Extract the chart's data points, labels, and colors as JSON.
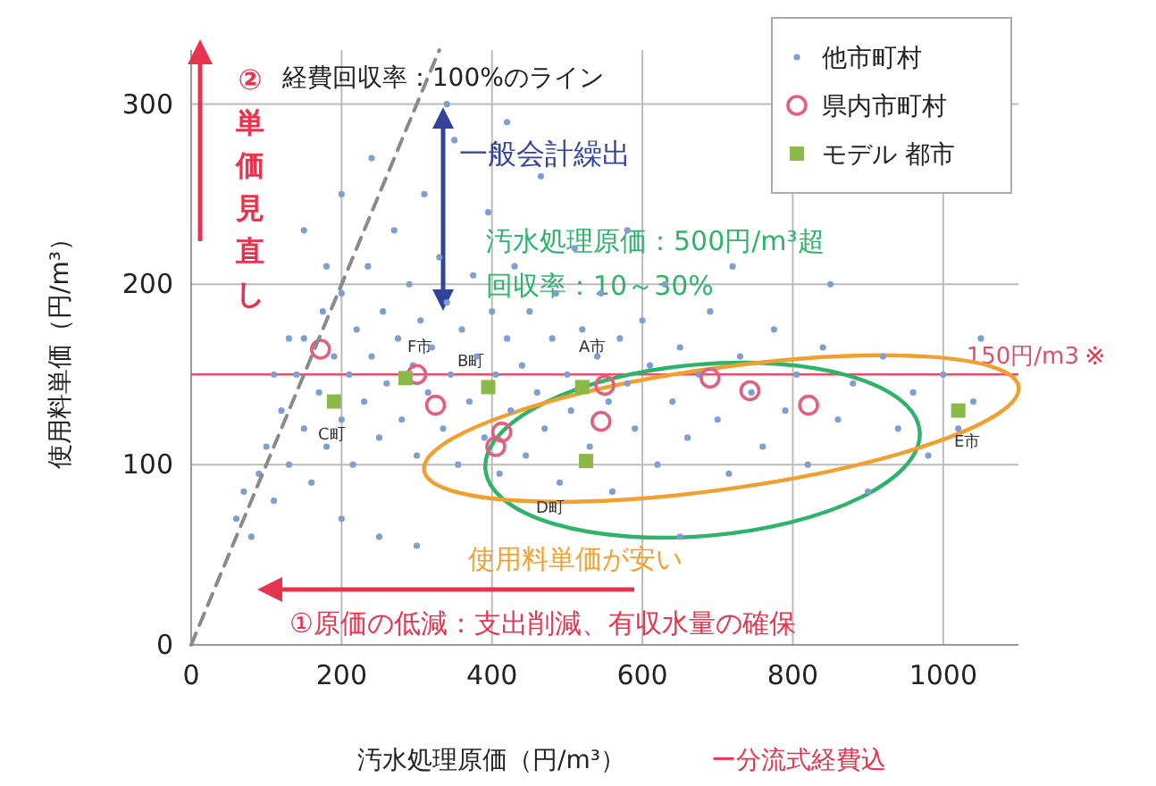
{
  "chart_data": {
    "type": "scatter",
    "xlabel": "汚水処理原価（円/m³）",
    "ylabel": "使用料単価（円/m³）",
    "xlim": [
      0,
      1100
    ],
    "ylim": [
      0,
      330
    ],
    "xticks": [
      0,
      200,
      400,
      600,
      800,
      1000
    ],
    "yticks": [
      0,
      100,
      200,
      300
    ],
    "grid": true,
    "legend": "top right",
    "series": [
      {
        "name": "他市町村",
        "color": "#7f9fd2",
        "marker": "circle",
        "x": [
          60,
          70,
          80,
          90,
          100,
          110,
          120,
          130,
          140,
          150,
          150,
          160,
          170,
          175,
          180,
          190,
          200,
          200,
          210,
          215,
          220,
          230,
          235,
          240,
          250,
          255,
          260,
          270,
          275,
          280,
          290,
          295,
          300,
          305,
          310,
          315,
          320,
          330,
          335,
          340,
          345,
          350,
          355,
          360,
          370,
          375,
          380,
          390,
          395,
          400,
          405,
          410,
          420,
          425,
          430,
          440,
          445,
          450,
          460,
          465,
          470,
          480,
          485,
          490,
          500,
          505,
          510,
          520,
          530,
          540,
          545,
          555,
          560,
          570,
          580,
          590,
          600,
          610,
          620,
          630,
          640,
          650,
          660,
          675,
          690,
          700,
          715,
          730,
          745,
          760,
          775,
          790,
          805,
          820,
          840,
          860,
          880,
          900,
          920,
          940,
          960,
          980,
          1000,
          1020,
          1040,
          250,
          200,
          300,
          650,
          340,
          200,
          150,
          420,
          580,
          720,
          850,
          1050,
          130,
          110,
          180,
          240
        ],
        "values": [
          70,
          85,
          60,
          95,
          110,
          80,
          130,
          100,
          150,
          120,
          170,
          90,
          140,
          185,
          110,
          160,
          125,
          195,
          150,
          100,
          175,
          135,
          210,
          160,
          115,
          185,
          145,
          230,
          170,
          125,
          200,
          155,
          105,
          180,
          250,
          140,
          165,
          215,
          120,
          190,
          150,
          280,
          100,
          175,
          135,
          205,
          160,
          115,
          240,
          185,
          150,
          95,
          170,
          130,
          210,
          155,
          105,
          185,
          140,
          260,
          120,
          170,
          195,
          90,
          150,
          130,
          220,
          175,
          110,
          160,
          195,
          135,
          85,
          170,
          145,
          120,
          180,
          155,
          100,
          200,
          135,
          165,
          115,
          150,
          185,
          125,
          95,
          160,
          140,
          110,
          175,
          130,
          150,
          100,
          165,
          125,
          145,
          85,
          160,
          120,
          140,
          105,
          150,
          120,
          135,
          60,
          70,
          55,
          60,
          300,
          250,
          230,
          290,
          230,
          210,
          200,
          170,
          170,
          150,
          210,
          270
        ]
      },
      {
        "name": "県内市町村",
        "color": "#e0607e",
        "marker": "circle",
        "x": [
          172,
          300,
          325,
          413,
          405,
          550,
          545,
          690,
          743,
          821
        ],
        "values": [
          164,
          150,
          133,
          118,
          110,
          144,
          124,
          148,
          141,
          133
        ]
      },
      {
        "name": "モデル 都市",
        "color": "#8cb84a",
        "marker": "square",
        "x": [
          190,
          285,
          395,
          520,
          525,
          1020
        ],
        "values": [
          135,
          148,
          143,
          143,
          102,
          130
        ]
      },
      {
        "type": "line",
        "color": "#8a8a8a",
        "line_style": "dashed",
        "marker": "none",
        "x": [
          0,
          330
        ],
        "values": [
          0,
          330
        ]
      }
    ],
    "ref_lines": [
      {
        "axis": "y",
        "value": 150,
        "label": "150円/m3",
        "color": "#e0506a"
      }
    ],
    "annotations": [
      {
        "text": "経費回収率：100%のライン",
        "x": 330,
        "y": 330
      },
      "②単価見直し",
      {
        "text": "一般会計繰出",
        "x": 333,
        "y": 300
      },
      "汚水処理原価：500円/m³超",
      "回収率：10～30%",
      "使用料単価が安い",
      "①原価の低減：支出削減、有収水量の確保",
      "ー分流式経費込",
      "※",
      "F市",
      "B町",
      "A市",
      "C町",
      "D町",
      "E市"
    ]
  }
}
